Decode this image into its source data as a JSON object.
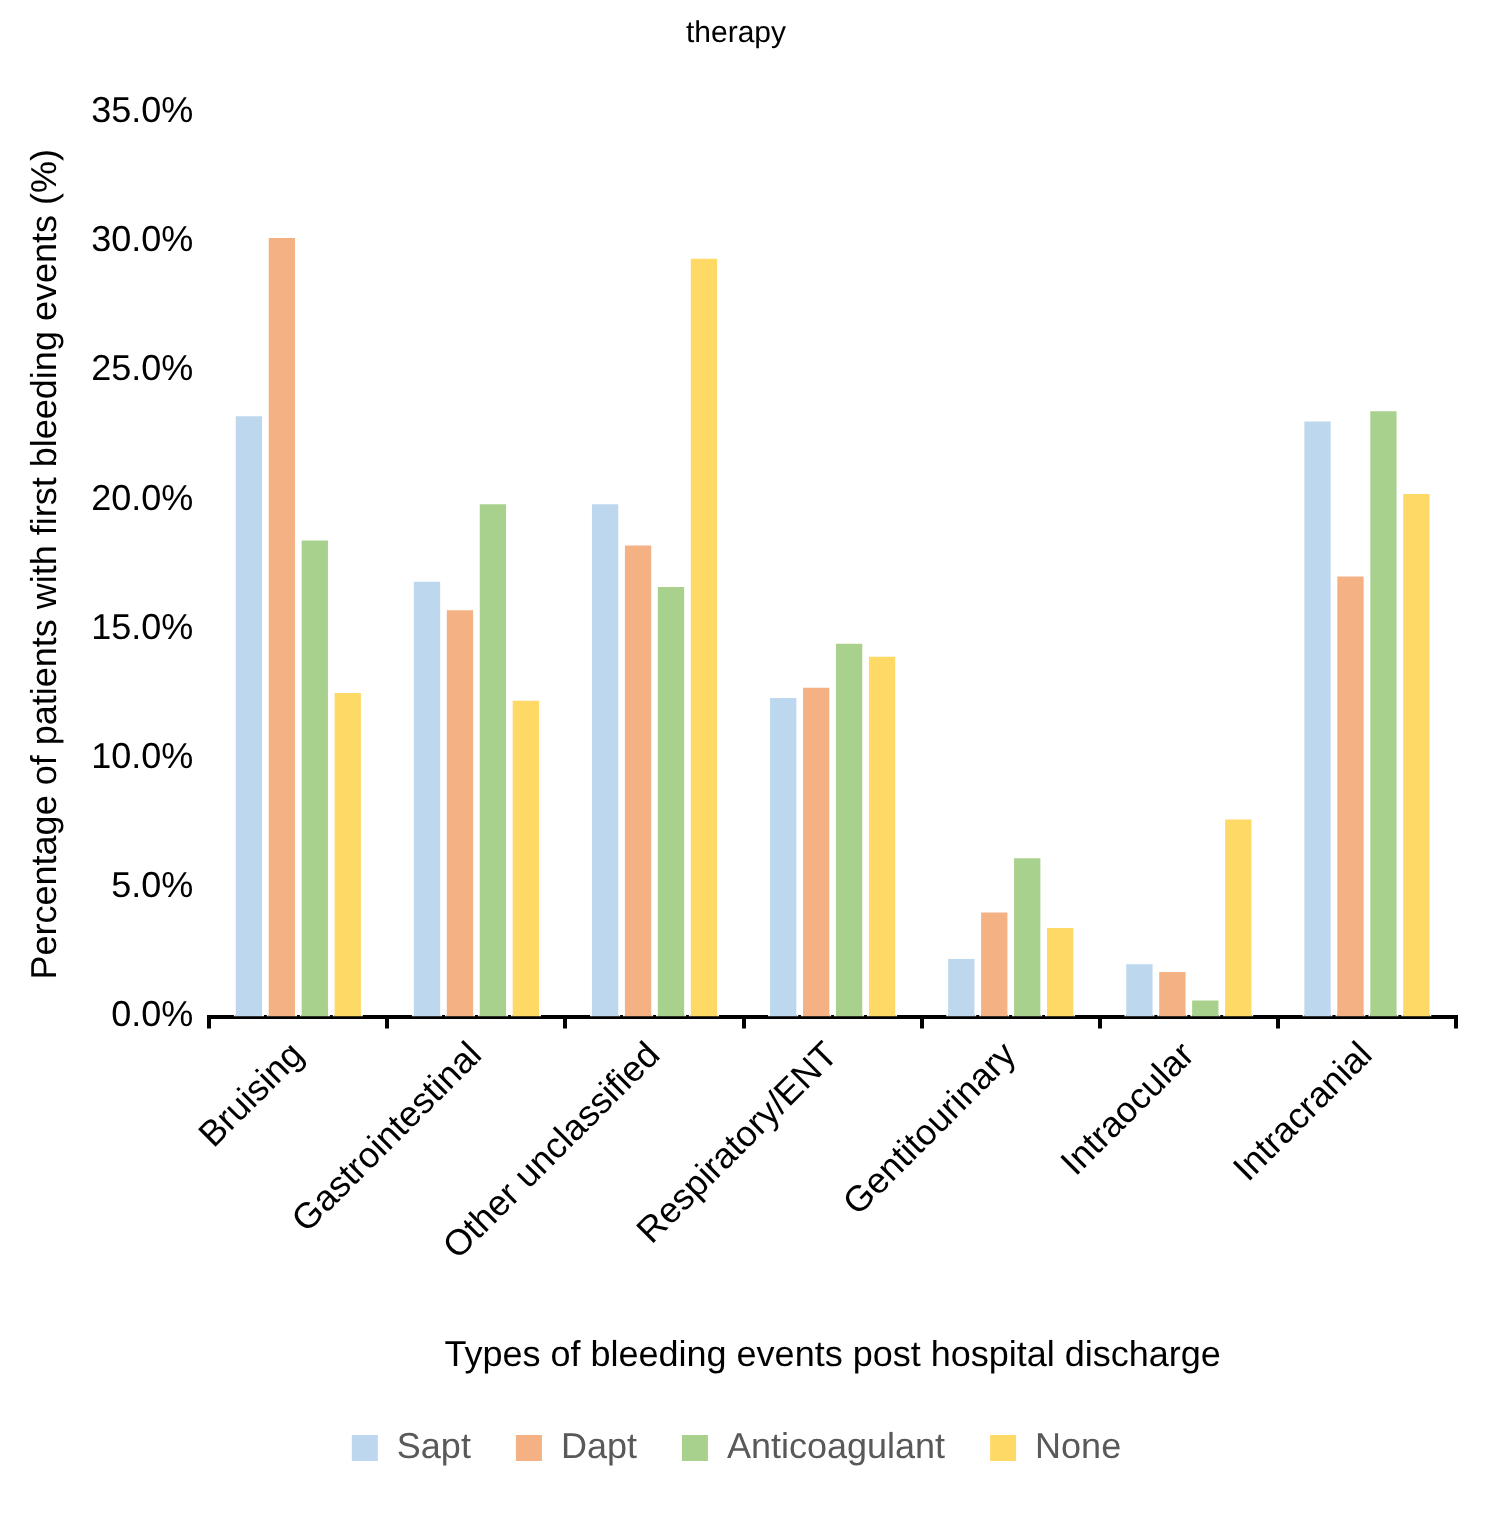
{
  "chart_data": {
    "type": "bar",
    "title": "therapy",
    "xlabel": "Types of bleeding events post hospital discharge",
    "ylabel": "Percentage of patients with first bleeding events (%)",
    "categories": [
      "Bruising",
      "Gastrointestinal",
      "Other unclassified",
      "Respiratory/ENT",
      "Gentitourinary",
      "Intraocular",
      "Intracranial"
    ],
    "series": [
      {
        "name": "Sapt",
        "color": "#bdd7ee",
        "values": [
          23.3,
          16.9,
          19.9,
          12.4,
          2.3,
          2.1,
          23.1
        ]
      },
      {
        "name": "Dapt",
        "color": "#f4b183",
        "values": [
          30.2,
          15.8,
          18.3,
          12.8,
          4.1,
          1.8,
          17.1
        ]
      },
      {
        "name": "Anticoagulant",
        "color": "#a9d18e",
        "values": [
          18.5,
          19.9,
          16.7,
          14.5,
          6.2,
          0.7,
          23.5
        ]
      },
      {
        "name": "None",
        "color": "#ffd966",
        "values": [
          12.6,
          12.3,
          29.4,
          14.0,
          3.5,
          7.7,
          20.3
        ]
      }
    ],
    "ylim": [
      0,
      35
    ],
    "yticks": [
      {
        "value": 0,
        "label": "0.0%"
      },
      {
        "value": 5,
        "label": "5.0%"
      },
      {
        "value": 10,
        "label": "10.0%"
      },
      {
        "value": 15,
        "label": "15.0%"
      },
      {
        "value": 20,
        "label": "20.0%"
      },
      {
        "value": 25,
        "label": "25.0%"
      },
      {
        "value": 30,
        "label": "30.0%"
      },
      {
        "value": 35,
        "label": "35.0%"
      }
    ],
    "grid": false,
    "legend": "bottom"
  }
}
